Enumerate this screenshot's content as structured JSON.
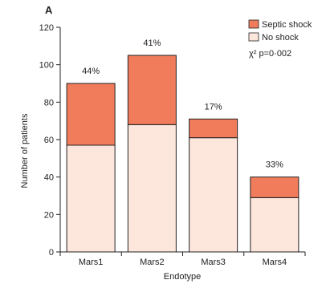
{
  "chart_data": {
    "type": "bar",
    "stacked": true,
    "panel_label": "A",
    "categories": [
      "Mars1",
      "Mars2",
      "Mars3",
      "Mars4"
    ],
    "series": [
      {
        "name": "No shock",
        "values": [
          57,
          68,
          61,
          29
        ],
        "color": "#fde6dc"
      },
      {
        "name": "Septic shock",
        "values": [
          33,
          37,
          10,
          11
        ],
        "color": "#f07c5c"
      }
    ],
    "bar_labels": [
      "44%",
      "41%",
      "17%",
      "33%"
    ],
    "xlabel": "Endotype",
    "ylabel": "Number of patients",
    "ylim": [
      0,
      120
    ],
    "yticks": [
      0,
      20,
      40,
      60,
      80,
      100,
      120
    ],
    "legend": [
      "Septic shock",
      "No shock"
    ],
    "legend_position": "top-right",
    "annotation": "χ² p=0·002",
    "grid": false
  }
}
